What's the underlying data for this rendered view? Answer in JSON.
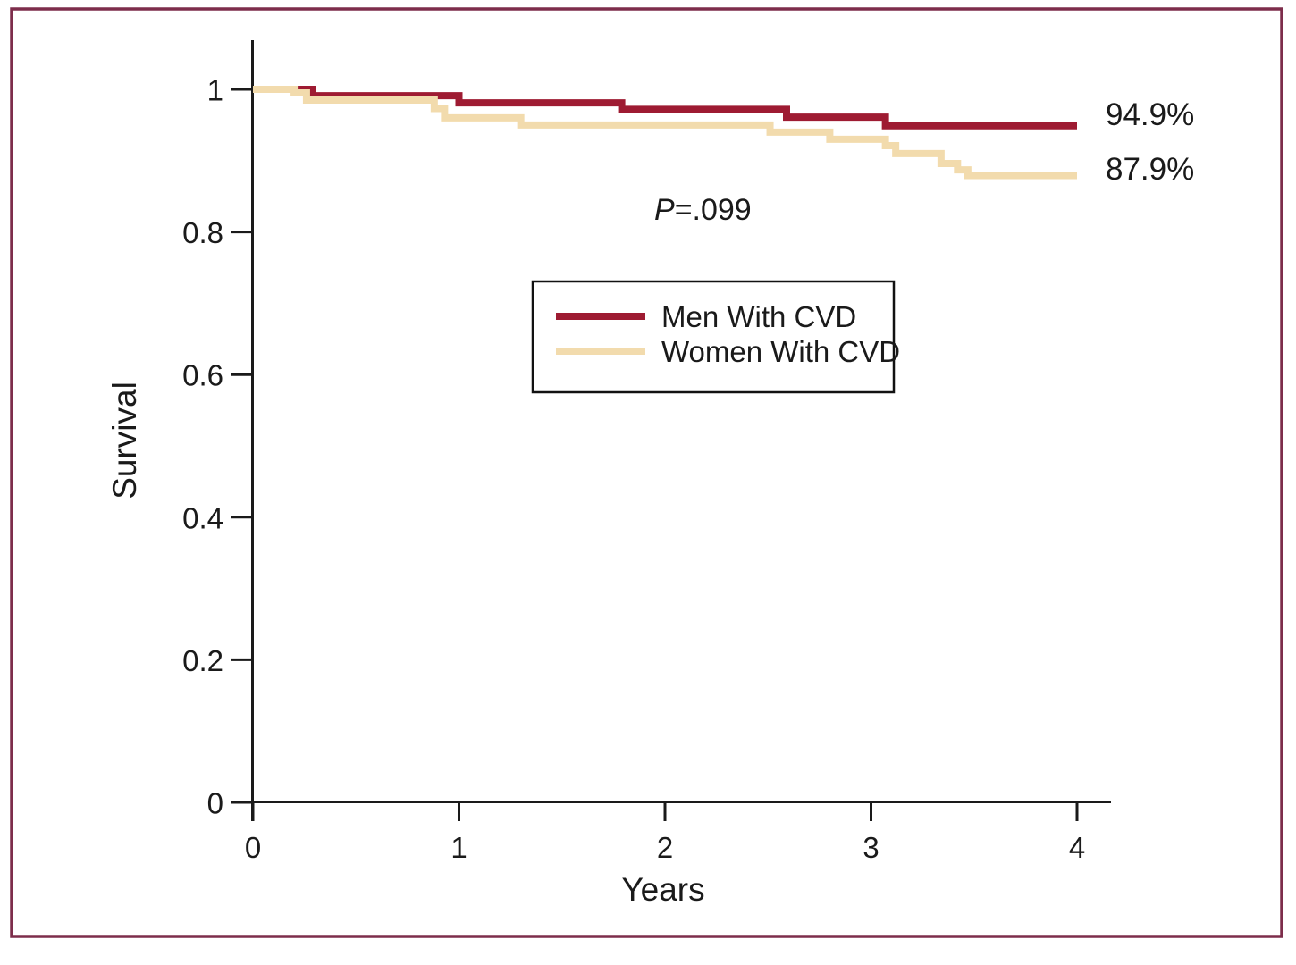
{
  "figure": {
    "border_color": "#7D2D4B",
    "background_color": "#ffffff",
    "axis_color": "#1a1a1a"
  },
  "chart_data": {
    "type": "line",
    "subtype": "kaplan-meier-step",
    "title": "",
    "xlabel": "Years",
    "ylabel": "Survival",
    "xlim": [
      0,
      4
    ],
    "ylim": [
      0,
      1.05
    ],
    "x_ticks": [
      0,
      1,
      2,
      3,
      4
    ],
    "x_tick_labels": [
      "0",
      "1",
      "2",
      "3",
      "4"
    ],
    "y_ticks": [
      0,
      0.2,
      0.4,
      0.6,
      0.8,
      1
    ],
    "y_tick_labels": [
      "0",
      "0.2",
      "0.4",
      "0.6",
      "0.8",
      "1"
    ],
    "grid": false,
    "legend_position": "center-right-box",
    "series": [
      {
        "name": "Men With CVD",
        "color": "#9E1B32",
        "end_label": "94.9%",
        "final_survival": 0.949,
        "steps": [
          [
            0,
            1.0
          ],
          [
            0.29,
            0.991
          ],
          [
            1.0,
            0.981
          ],
          [
            1.79,
            0.972
          ],
          [
            2.59,
            0.961
          ],
          [
            3.07,
            0.949
          ]
        ],
        "x_end": 4.0
      },
      {
        "name": "Women With CVD",
        "color": "#F2DBAD",
        "end_label": "87.9%",
        "final_survival": 0.879,
        "steps": [
          [
            0,
            1.0
          ],
          [
            0.2,
            0.995
          ],
          [
            0.26,
            0.985
          ],
          [
            0.88,
            0.973
          ],
          [
            0.93,
            0.96
          ],
          [
            1.3,
            0.95
          ],
          [
            2.51,
            0.94
          ],
          [
            2.8,
            0.93
          ],
          [
            3.07,
            0.921
          ],
          [
            3.12,
            0.91
          ],
          [
            3.34,
            0.896
          ],
          [
            3.42,
            0.887
          ],
          [
            3.47,
            0.879
          ]
        ],
        "x_end": 4.0
      }
    ],
    "annotations": [
      {
        "name": "p-value",
        "text_italic": "P",
        "text_rest": "=.099"
      }
    ]
  }
}
